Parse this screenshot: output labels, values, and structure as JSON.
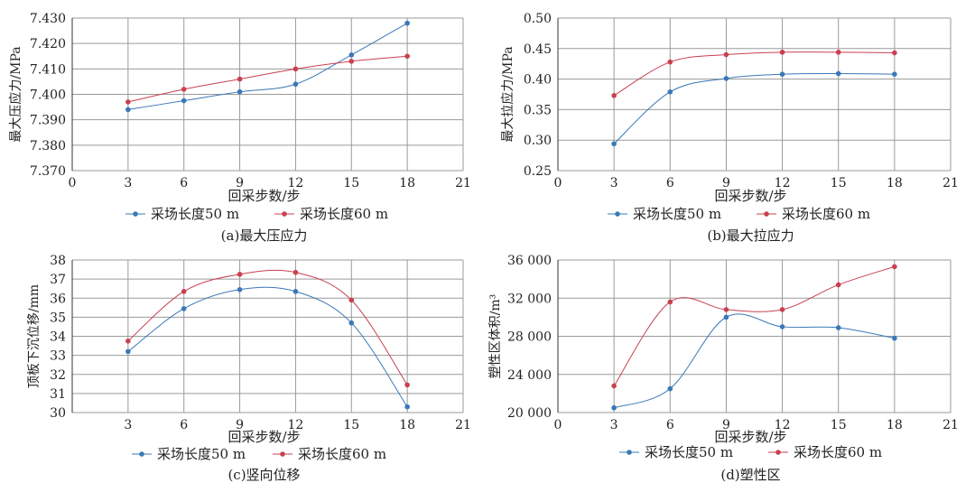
{
  "colors": {
    "series_a": "#3a78b8",
    "series_b": "#c9404f",
    "grid": "#9a9a9a",
    "axis": "#333333"
  },
  "chart_data": [
    {
      "type": "line",
      "caption": "(a)最大压应力",
      "xlabel": "回采步数/步",
      "ylabel": "最大压应力/MPa",
      "xlim": [
        0,
        21
      ],
      "xticks": [
        0,
        3,
        6,
        9,
        12,
        15,
        18,
        21
      ],
      "xtick_labels": [
        "0",
        "3",
        "6",
        "9",
        "12",
        "15",
        "18",
        "21"
      ],
      "ylim": [
        7.37,
        7.43
      ],
      "yticks": [
        7.37,
        7.38,
        7.39,
        7.4,
        7.41,
        7.42,
        7.43
      ],
      "ytick_labels": [
        "7.370",
        "7.380",
        "7.390",
        "7.400",
        "7.410",
        "7.420",
        "7.430"
      ],
      "grid": true,
      "legend_position": "bottom",
      "series": [
        {
          "name": "采场长度50 m",
          "x": [
            3,
            6,
            9,
            12,
            15,
            18
          ],
          "y": [
            7.394,
            7.3975,
            7.401,
            7.404,
            7.4155,
            7.428
          ]
        },
        {
          "name": "采场长度60 m",
          "x": [
            3,
            6,
            9,
            12,
            15,
            18
          ],
          "y": [
            7.397,
            7.402,
            7.406,
            7.41,
            7.413,
            7.415
          ]
        }
      ]
    },
    {
      "type": "line",
      "caption": "(b)最大拉应力",
      "xlabel": "回采步数/步",
      "ylabel": "最大拉应力/MPa",
      "xlim": [
        0,
        21
      ],
      "xticks": [
        0,
        3,
        6,
        9,
        12,
        15,
        18,
        21
      ],
      "xtick_labels": [
        "0",
        "3",
        "6",
        "9",
        "12",
        "15",
        "18",
        "21"
      ],
      "ylim": [
        0.25,
        0.5
      ],
      "yticks": [
        0.25,
        0.3,
        0.35,
        0.4,
        0.45,
        0.5
      ],
      "ytick_labels": [
        "0.25",
        "0.30",
        "0.35",
        "0.40",
        "0.45",
        "0.50"
      ],
      "grid": true,
      "legend_position": "bottom",
      "series": [
        {
          "name": "采场长度50 m",
          "x": [
            3,
            6,
            9,
            12,
            15,
            18
          ],
          "y": [
            0.294,
            0.379,
            0.401,
            0.408,
            0.409,
            0.408
          ]
        },
        {
          "name": "采场长度60 m",
          "x": [
            3,
            6,
            9,
            12,
            15,
            18
          ],
          "y": [
            0.373,
            0.428,
            0.44,
            0.444,
            0.444,
            0.443
          ]
        }
      ]
    },
    {
      "type": "line",
      "caption": "(c)竖向位移",
      "xlabel": "回采步数/步",
      "ylabel": "顶板下沉位移/mm",
      "xlim": [
        0,
        21
      ],
      "xticks": [
        3,
        6,
        9,
        12,
        15,
        18,
        21
      ],
      "xtick_labels": [
        "3",
        "6",
        "9",
        "12",
        "15",
        "18",
        "21"
      ],
      "ylim": [
        30,
        38
      ],
      "yticks": [
        30,
        31,
        32,
        33,
        34,
        35,
        36,
        37,
        38
      ],
      "ytick_labels": [
        "30",
        "31",
        "32",
        "33",
        "34",
        "35",
        "36",
        "37",
        "38"
      ],
      "grid": true,
      "legend_position": "bottom",
      "series": [
        {
          "name": "采场长度50 m",
          "x": [
            3,
            6,
            9,
            12,
            15,
            18
          ],
          "y": [
            33.2,
            35.45,
            36.45,
            36.35,
            34.7,
            30.3
          ]
        },
        {
          "name": "采场长度60 m",
          "x": [
            3,
            6,
            9,
            12,
            15,
            18
          ],
          "y": [
            33.75,
            36.35,
            37.25,
            37.35,
            35.9,
            31.45
          ]
        }
      ]
    },
    {
      "type": "line",
      "caption": "(d)塑性区",
      "xlabel": "回采步数/步",
      "ylabel": "塑性区体积/m³",
      "xlim": [
        0,
        21
      ],
      "xticks": [
        0,
        3,
        6,
        9,
        12,
        15,
        18,
        21
      ],
      "xtick_labels": [
        "0",
        "3",
        "6",
        "9",
        "12",
        "15",
        "18",
        "21"
      ],
      "ylim": [
        20000,
        36000
      ],
      "yticks": [
        20000,
        24000,
        28000,
        32000,
        36000
      ],
      "ytick_labels": [
        "20 000",
        "24 000",
        "28 000",
        "32 000",
        "36 000"
      ],
      "grid": true,
      "legend_position": "bottom",
      "series": [
        {
          "name": "采场长度50 m",
          "x": [
            3,
            6,
            9,
            12,
            15,
            18
          ],
          "y": [
            20500,
            22500,
            30000,
            29000,
            28900,
            27800
          ]
        },
        {
          "name": "采场长度60 m",
          "x": [
            3,
            6,
            9,
            12,
            15,
            18
          ],
          "y": [
            22800,
            31600,
            30800,
            30800,
            33400,
            35300
          ]
        }
      ]
    }
  ]
}
